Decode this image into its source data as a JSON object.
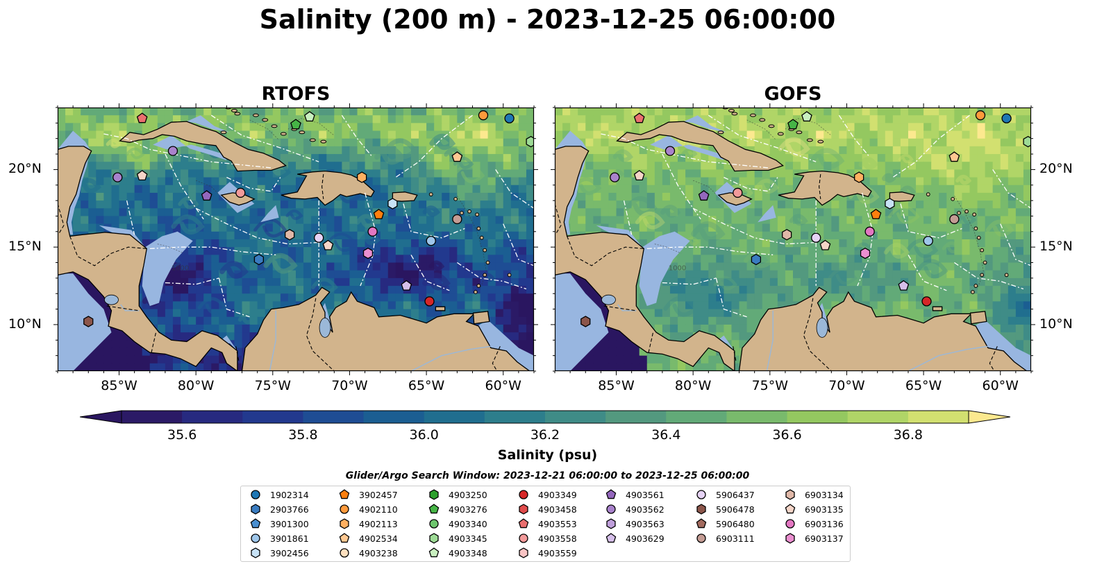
{
  "title": "Salinity (200 m) - 2023-12-25 06:00:00",
  "panels": [
    {
      "title": "RTOFS",
      "model": "rtofs"
    },
    {
      "title": "GOFS",
      "model": "gofs"
    }
  ],
  "map": {
    "lon_range": [
      -89,
      -58
    ],
    "lat_range": [
      7,
      24
    ],
    "xticks": [
      {
        "lon": -85,
        "label": "85°W"
      },
      {
        "lon": -80,
        "label": "80°W"
      },
      {
        "lon": -75,
        "label": "75°W"
      },
      {
        "lon": -70,
        "label": "70°W"
      },
      {
        "lon": -65,
        "label": "65°W"
      },
      {
        "lon": -60,
        "label": "60°W"
      }
    ],
    "yticks": [
      {
        "lat": 20,
        "label": "20°N"
      },
      {
        "lat": 15,
        "label": "15°N"
      },
      {
        "lat": 10,
        "label": "10°N"
      }
    ],
    "colors": {
      "land": "#d2b48c",
      "shelf": "#98b6e0",
      "border": "#000000",
      "eez": "#ffffff"
    }
  },
  "colorbar": {
    "label": "Salinity (psu)",
    "range": [
      35.5,
      36.9
    ],
    "extend": "both",
    "levels": [
      35.5,
      35.6,
      35.7,
      35.8,
      35.9,
      36.0,
      36.1,
      36.2,
      36.3,
      36.4,
      36.5,
      36.6,
      36.7,
      36.8,
      36.9
    ],
    "colors": [
      "#2b1a66",
      "#272a80",
      "#22398e",
      "#1e4d94",
      "#1b5e92",
      "#206e8f",
      "#2d7e8c",
      "#3f8c87",
      "#53997f",
      "#62aa78",
      "#79ba6c",
      "#94c860",
      "#b0d567",
      "#d2e070"
    ],
    "extend_low_color": "#2a1660",
    "extend_high_color": "#fce98f",
    "ticks": [
      "35.6",
      "35.8",
      "36.0",
      "36.2",
      "36.4",
      "36.6",
      "36.8"
    ]
  },
  "legend": {
    "title": "Glider/Argo Search Window: 2023-12-21 06:00:00 to 2023-12-25 06:00:00",
    "columns": [
      [
        {
          "id": "1902314",
          "color": "#1f77b4",
          "marker": "circle"
        },
        {
          "id": "2903766",
          "color": "#3a7cc0",
          "marker": "hexagon"
        },
        {
          "id": "3901300",
          "color": "#4a8fd0",
          "marker": "pentagon"
        },
        {
          "id": "3901861",
          "color": "#9ec6ea",
          "marker": "circle"
        },
        {
          "id": "3902456",
          "color": "#c7e2f6",
          "marker": "hexagon"
        }
      ],
      [
        {
          "id": "3902457",
          "color": "#ff7f0e",
          "marker": "pentagon"
        },
        {
          "id": "4902110",
          "color": "#ff9a3c",
          "marker": "circle"
        },
        {
          "id": "4902113",
          "color": "#ffb061",
          "marker": "hexagon"
        },
        {
          "id": "4902534",
          "color": "#ffc891",
          "marker": "pentagon"
        },
        {
          "id": "4903238",
          "color": "#ffe0bf",
          "marker": "circle"
        }
      ],
      [
        {
          "id": "4903250",
          "color": "#2ca02c",
          "marker": "hexagon"
        },
        {
          "id": "4903276",
          "color": "#46b546",
          "marker": "pentagon"
        },
        {
          "id": "4903340",
          "color": "#6ec66e",
          "marker": "circle"
        },
        {
          "id": "4903345",
          "color": "#9edb96",
          "marker": "hexagon"
        },
        {
          "id": "4903348",
          "color": "#c9f0c0",
          "marker": "pentagon"
        }
      ],
      [
        {
          "id": "4903349",
          "color": "#d62728",
          "marker": "circle"
        },
        {
          "id": "4903458",
          "color": "#e04b4b",
          "marker": "hexagon"
        },
        {
          "id": "4903553",
          "color": "#ea6f6f",
          "marker": "pentagon"
        },
        {
          "id": "4903558",
          "color": "#f29a9a",
          "marker": "circle"
        },
        {
          "id": "4903559",
          "color": "#f9c4c4",
          "marker": "hexagon"
        }
      ],
      [
        {
          "id": "4903561",
          "color": "#9467bd",
          "marker": "pentagon"
        },
        {
          "id": "4903562",
          "color": "#a982cc",
          "marker": "circle"
        },
        {
          "id": "4903563",
          "color": "#bf9fdb",
          "marker": "hexagon"
        },
        {
          "id": "4903629",
          "color": "#d6bfea",
          "marker": "pentagon"
        }
      ],
      [
        {
          "id": "5906437",
          "color": "#e6d3f5",
          "marker": "circle"
        },
        {
          "id": "5906478",
          "color": "#8c564b",
          "marker": "hexagon"
        },
        {
          "id": "5906480",
          "color": "#a36b5f",
          "marker": "pentagon"
        },
        {
          "id": "6903111",
          "color": "#c49c94",
          "marker": "circle"
        }
      ],
      [
        {
          "id": "6903134",
          "color": "#e0b8a8",
          "marker": "hexagon"
        },
        {
          "id": "6903135",
          "color": "#f5d5c8",
          "marker": "pentagon"
        },
        {
          "id": "6903136",
          "color": "#e377c2",
          "marker": "circle"
        },
        {
          "id": "6903137",
          "color": "#eb8fd0",
          "marker": "hexagon"
        }
      ]
    ]
  },
  "floats": [
    {
      "id": "4903553",
      "lon": -83.5,
      "lat": 23.3
    },
    {
      "id": "4903348",
      "lon": -72.6,
      "lat": 23.4
    },
    {
      "id": "4902110",
      "lon": -61.3,
      "lat": 23.5
    },
    {
      "id": "1902314",
      "lon": -59.6,
      "lat": 23.3
    },
    {
      "id": "4903345",
      "lon": -58.2,
      "lat": 21.8
    },
    {
      "id": "4903276",
      "lon": -73.5,
      "lat": 22.9
    },
    {
      "id": "4903562",
      "lon": -81.5,
      "lat": 21.2
    },
    {
      "id": "4902534",
      "lon": -63.0,
      "lat": 20.8
    },
    {
      "id": "4903562",
      "lon": -85.1,
      "lat": 19.5
    },
    {
      "id": "6903135",
      "lon": -83.5,
      "lat": 19.6
    },
    {
      "id": "4902113",
      "lon": -69.2,
      "lat": 19.5
    },
    {
      "id": "4903561",
      "lon": -79.3,
      "lat": 18.3
    },
    {
      "id": "4903558",
      "lon": -77.1,
      "lat": 18.5
    },
    {
      "id": "3902456",
      "lon": -67.2,
      "lat": 17.8
    },
    {
      "id": "3902457",
      "lon": -68.1,
      "lat": 17.1
    },
    {
      "id": "6903111",
      "lon": -63.0,
      "lat": 16.8
    },
    {
      "id": "6903136",
      "lon": -68.5,
      "lat": 16.0
    },
    {
      "id": "6903134",
      "lon": -73.9,
      "lat": 15.8
    },
    {
      "id": "5906437",
      "lon": -72.0,
      "lat": 15.6
    },
    {
      "id": "6903135",
      "lon": -71.4,
      "lat": 15.1
    },
    {
      "id": "3901861",
      "lon": -64.7,
      "lat": 15.4
    },
    {
      "id": "6903137",
      "lon": -68.8,
      "lat": 14.6
    },
    {
      "id": "2903766",
      "lon": -75.9,
      "lat": 14.2
    },
    {
      "id": "4903629",
      "lon": -66.3,
      "lat": 12.5
    },
    {
      "id": "4903349",
      "lon": -64.8,
      "lat": 11.5
    },
    {
      "id": "5906478",
      "lon": -87.0,
      "lat": 10.2
    }
  ]
}
